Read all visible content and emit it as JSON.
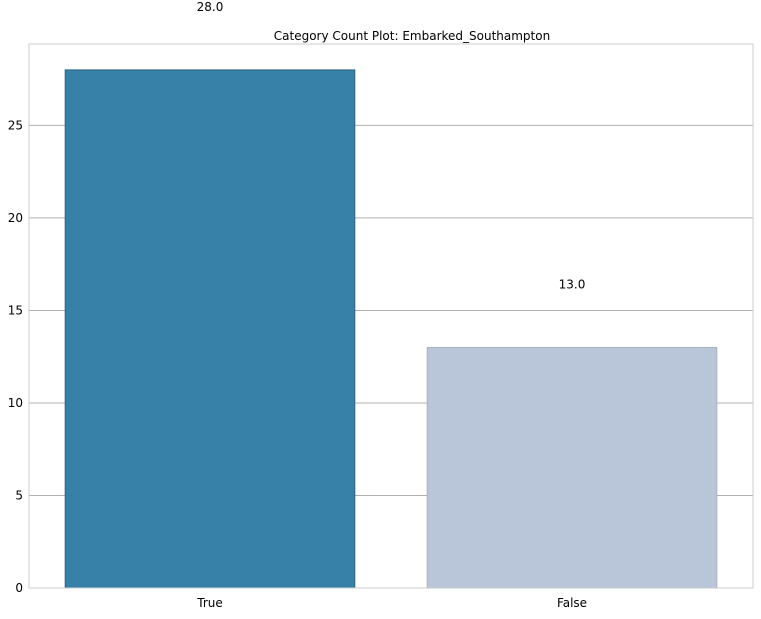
{
  "chart_data": {
    "type": "bar",
    "title": "Category Count Plot: Embarked_Southampton",
    "xlabel": "",
    "ylabel": "",
    "categories": [
      "True",
      "False"
    ],
    "values": [
      28,
      13
    ],
    "data_labels": [
      "28.0",
      "13.0"
    ],
    "yticks": [
      0,
      5,
      10,
      15,
      20,
      25
    ],
    "ylim": [
      0,
      29.4
    ],
    "grid": "horizontal",
    "colors": [
      "#3781a9",
      "#b9c5d9"
    ],
    "edge_colors": [
      "#2a6281",
      "#a6b2c4"
    ]
  }
}
